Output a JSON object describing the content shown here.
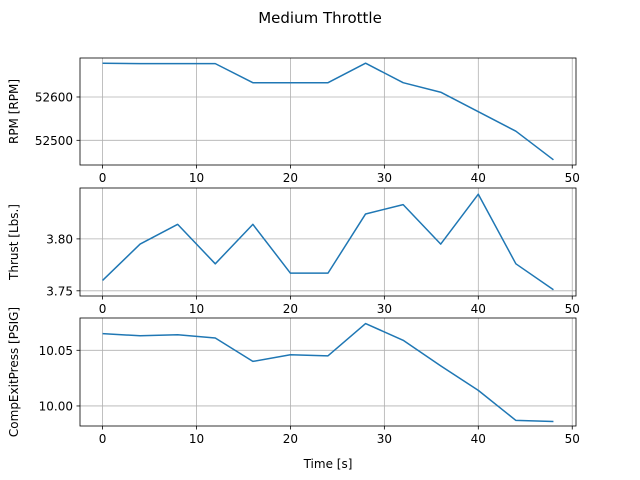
{
  "figure": {
    "title": "Medium Throttle"
  },
  "chart_data": [
    {
      "type": "line",
      "title": "",
      "xlabel": "",
      "ylabel": "RPM [RPM]",
      "xlim": [
        -2.4,
        50.4
      ],
      "ylim": [
        52443,
        52690
      ],
      "xticks": [
        0,
        10,
        20,
        30,
        40,
        50
      ],
      "xtick_labels": [
        "0",
        "10",
        "20",
        "30",
        "40",
        "50"
      ],
      "yticks": [
        52500,
        52600
      ],
      "ytick_labels": [
        "52500",
        "52600"
      ],
      "grid": true,
      "color": "#1f77b4",
      "x": [
        0,
        4,
        8,
        12,
        16,
        20,
        24,
        28,
        32,
        36,
        40,
        44,
        48
      ],
      "y": [
        52678,
        52677,
        52677,
        52677,
        52633,
        52633,
        52633,
        52678,
        52633,
        52611,
        52566,
        52521,
        52455
      ]
    },
    {
      "type": "line",
      "title": "",
      "xlabel": "",
      "ylabel": "Thrust [Lbs.]",
      "xlim": [
        -2.4,
        50.4
      ],
      "ylim": [
        3.745,
        3.849
      ],
      "xticks": [
        0,
        10,
        20,
        30,
        40,
        50
      ],
      "xtick_labels": [
        "0",
        "10",
        "20",
        "30",
        "40",
        "50"
      ],
      "yticks": [
        3.75,
        3.8
      ],
      "ytick_labels": [
        "3.75",
        "3.80"
      ],
      "grid": true,
      "color": "#1f77b4",
      "x": [
        0,
        4,
        8,
        12,
        16,
        20,
        24,
        28,
        32,
        36,
        40,
        44,
        48
      ],
      "y": [
        3.76,
        3.795,
        3.814,
        3.776,
        3.814,
        3.767,
        3.767,
        3.824,
        3.833,
        3.795,
        3.843,
        3.776,
        3.751
      ]
    },
    {
      "type": "line",
      "title": "",
      "xlabel": "Time [s]",
      "ylabel": "CompExitPress [PSIG]",
      "xlim": [
        -2.4,
        50.4
      ],
      "ylim": [
        9.982,
        10.079
      ],
      "xticks": [
        0,
        10,
        20,
        30,
        40,
        50
      ],
      "xtick_labels": [
        "0",
        "10",
        "20",
        "30",
        "40",
        "50"
      ],
      "yticks": [
        10.0,
        10.05
      ],
      "ytick_labels": [
        "10.00",
        "10.05"
      ],
      "grid": true,
      "color": "#1f77b4",
      "x": [
        0,
        4,
        8,
        12,
        16,
        20,
        24,
        28,
        32,
        36,
        40,
        44,
        48
      ],
      "y": [
        10.065,
        10.063,
        10.064,
        10.061,
        10.04,
        10.046,
        10.045,
        10.074,
        10.059,
        10.036,
        10.014,
        9.987,
        9.986
      ]
    }
  ]
}
